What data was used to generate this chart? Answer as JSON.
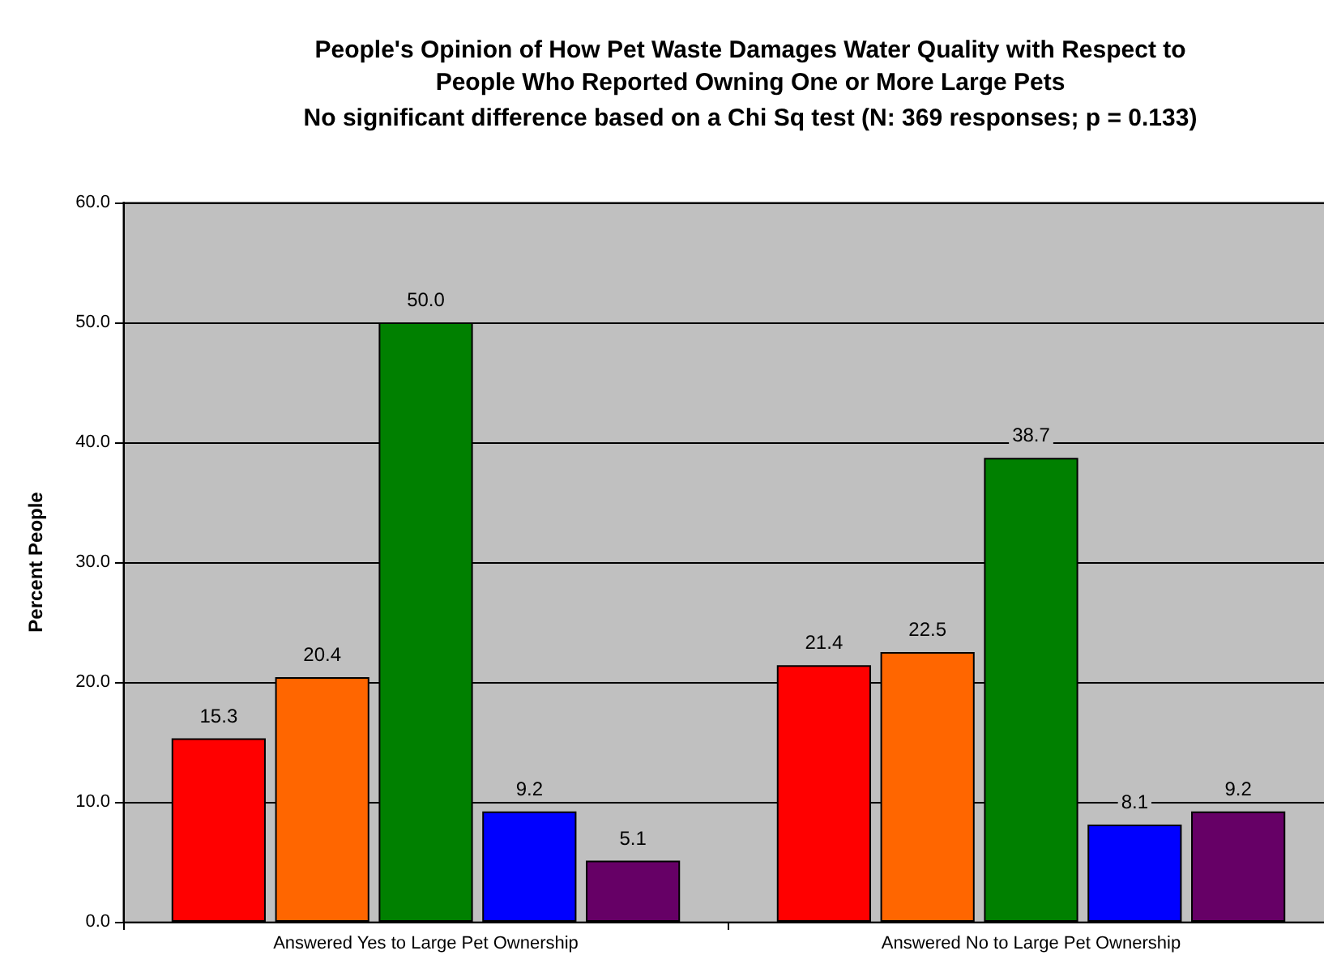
{
  "chart_data": {
    "type": "bar",
    "title": "People's Opinion of How Pet Waste Damages Water Quality with Respect to\nPeople Who Reported Owning One or More Large Pets",
    "subtitle": "No significant difference based on a Chi Sq test (N: 369 responses; p = 0.133)",
    "ylabel": "Percent People",
    "categories": [
      "Answered Yes to Large Pet Ownership",
      "Answered No to Large Pet Ownership"
    ],
    "series": [
      {
        "color": "#ff0000",
        "values": [
          15.3,
          21.4
        ],
        "value_labels": [
          "15.3",
          "21.4"
        ]
      },
      {
        "color": "#ff6600",
        "values": [
          20.4,
          22.5
        ],
        "value_labels": [
          "20.4",
          "22.5"
        ]
      },
      {
        "color": "#008000",
        "values": [
          50.0,
          38.7
        ],
        "value_labels": [
          "50.0",
          "38.7"
        ]
      },
      {
        "color": "#0000ff",
        "values": [
          9.2,
          8.1
        ],
        "value_labels": [
          "9.2",
          "8.1"
        ]
      },
      {
        "color": "#660066",
        "values": [
          5.1,
          9.2
        ],
        "value_labels": [
          "5.1",
          "9.2"
        ]
      }
    ],
    "ylim": [
      0,
      60
    ],
    "yticks": [
      {
        "value": 0,
        "label": "0.0"
      },
      {
        "value": 10,
        "label": "10.0"
      },
      {
        "value": 20,
        "label": "20.0"
      },
      {
        "value": 30,
        "label": "30.0"
      },
      {
        "value": 40,
        "label": "40.0"
      },
      {
        "value": 50,
        "label": "50.0"
      },
      {
        "value": 60,
        "label": "60.0"
      }
    ],
    "grid": "y"
  }
}
